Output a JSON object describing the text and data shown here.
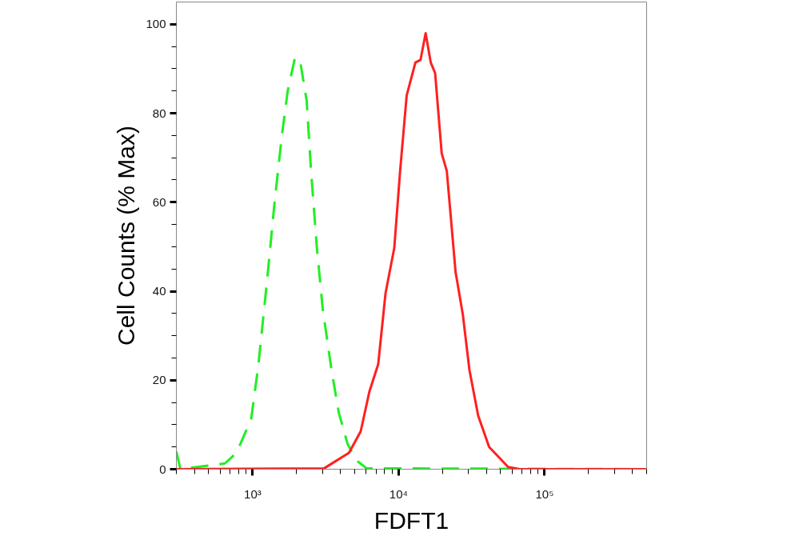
{
  "chart_data": {
    "type": "line",
    "xlabel": "FDFT1",
    "ylabel": "Cell Counts (% Max)",
    "log": "x",
    "grid": false,
    "marker": "none",
    "xlim": [
      300,
      500000
    ],
    "ylim": [
      0,
      105
    ],
    "xticks": [
      {
        "value": 300,
        "label": null
      },
      {
        "value": 400,
        "label": null
      },
      {
        "value": 500,
        "label": null
      },
      {
        "value": 600,
        "label": null
      },
      {
        "value": 700,
        "label": null
      },
      {
        "value": 800,
        "label": null
      },
      {
        "value": 900,
        "label": null
      },
      {
        "value": 1000,
        "label": "10³"
      },
      {
        "value": 2000,
        "label": null
      },
      {
        "value": 3000,
        "label": null
      },
      {
        "value": 4000,
        "label": null
      },
      {
        "value": 5000,
        "label": null
      },
      {
        "value": 6000,
        "label": null
      },
      {
        "value": 7000,
        "label": null
      },
      {
        "value": 8000,
        "label": null
      },
      {
        "value": 9000,
        "label": null
      },
      {
        "value": 10000,
        "label": "10⁴"
      },
      {
        "value": 20000,
        "label": null
      },
      {
        "value": 30000,
        "label": null
      },
      {
        "value": 40000,
        "label": null
      },
      {
        "value": 50000,
        "label": null
      },
      {
        "value": 60000,
        "label": null
      },
      {
        "value": 70000,
        "label": null
      },
      {
        "value": 80000,
        "label": null
      },
      {
        "value": 90000,
        "label": null
      },
      {
        "value": 100000,
        "label": "10⁵"
      },
      {
        "value": 200000,
        "label": null
      },
      {
        "value": 300000,
        "label": null
      },
      {
        "value": 400000,
        "label": null
      },
      {
        "value": 500000,
        "label": null
      }
    ],
    "yticks": [
      0,
      {
        "value": 5,
        "label": null
      },
      {
        "value": 10,
        "label": null
      },
      {
        "value": 15,
        "label": null
      },
      20,
      {
        "value": 25,
        "label": null
      },
      {
        "value": 30,
        "label": null
      },
      {
        "value": 35,
        "label": null
      },
      40,
      {
        "value": 45,
        "label": null
      },
      {
        "value": 50,
        "label": null
      },
      {
        "value": 55,
        "label": null
      },
      60,
      {
        "value": 65,
        "label": null
      },
      {
        "value": 70,
        "label": null
      },
      {
        "value": 75,
        "label": null
      },
      80,
      {
        "value": 85,
        "label": null
      },
      {
        "value": 90,
        "label": null
      },
      {
        "value": 95,
        "label": null
      },
      100
    ],
    "series": [
      {
        "color": "#22ee22",
        "line_style": "dashed",
        "x": [
          300,
          320,
          646,
          776,
          977,
          1096,
          1259,
          1413,
          1585,
          1738,
          1950,
          2113,
          2344,
          2512,
          2754,
          3020,
          3467,
          3890,
          4467,
          5129,
          6026,
          500000
        ],
        "values": [
          4,
          0,
          1.3,
          3.7,
          11.3,
          23.6,
          42.9,
          60,
          75,
          85,
          92.5,
          91.8,
          82.8,
          67,
          49.7,
          36,
          22.3,
          12.7,
          5.7,
          2,
          0.2,
          0
        ]
      },
      {
        "color": "#ff2020",
        "line_style": "solid",
        "x": [
          300,
          3090,
          4571,
          5495,
          6310,
          7244,
          8128,
          9333,
          10233,
          11350,
          13030,
          14125,
          15310,
          16600,
          17780,
          19720,
          21380,
          24550,
          27540,
          30550,
          35080,
          41690,
          56230,
          67610,
          500000
        ],
        "values": [
          0,
          0.2,
          3.7,
          8.5,
          17.5,
          23.6,
          39.5,
          49.7,
          67,
          84,
          91.4,
          92,
          98,
          91.4,
          89,
          71,
          67,
          44.3,
          34.7,
          22.3,
          12,
          5,
          0.5,
          0,
          0
        ]
      }
    ]
  }
}
